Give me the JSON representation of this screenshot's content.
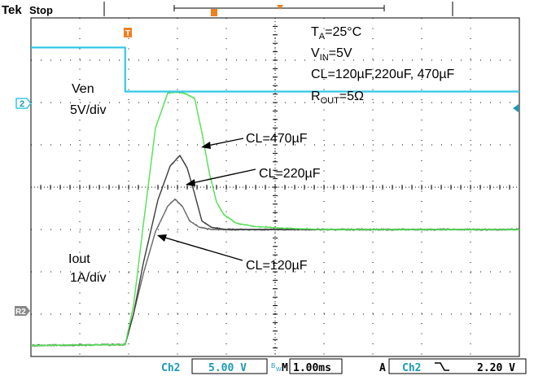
{
  "header": {
    "brand": "Tek",
    "status": "Stop",
    "trigger_marker": "T"
  },
  "footer": {
    "channel": "Ch2",
    "volts_per_div": "5.00 V",
    "bw_icon": "bandwidth-limit-icon",
    "timebase_prefix": "M",
    "time_per_div": "1.00ms",
    "trigger_mode": "A",
    "trigger_source": "Ch2",
    "trigger_slope_icon": "falling-edge-icon",
    "trigger_level": "2.20 V"
  },
  "conditions": [
    {
      "main": "T",
      "sub": "A",
      "rest": "=25°C"
    },
    {
      "main": "V",
      "sub": "IN",
      "rest": "=5V"
    },
    {
      "main": "CL=120µF,220uF, 470µF",
      "sub": "",
      "rest": ""
    },
    {
      "main": "R",
      "sub": "OUT",
      "rest": "=5Ω"
    }
  ],
  "labels": {
    "ven": "Ven",
    "ven_scale": "5V/div",
    "iout": "Iout",
    "iout_scale": "1A/div",
    "ch2_marker": "2",
    "ref_marker": "R2"
  },
  "annotations": [
    {
      "text": "CL=470µF"
    },
    {
      "text": "CL=220µF"
    },
    {
      "text": "CL=120µF"
    }
  ],
  "colors": {
    "ven_trace": "#33c8e8",
    "cl470_trace": "#55e055",
    "cl220_trace": "#404040",
    "cl120_trace": "#6a6a6a",
    "grid": "#000000"
  },
  "chart_data": {
    "type": "line",
    "x_unit": "div",
    "xlim": [
      0,
      10
    ],
    "ylim": [
      0,
      8
    ],
    "grid": true,
    "series": [
      {
        "key": "ven",
        "x": [
          0,
          1.93,
          1.93,
          10
        ],
        "y": [
          7.3,
          7.3,
          6.26,
          6.26
        ]
      },
      {
        "key": "cl470",
        "x": [
          0,
          1.93,
          2.1,
          2.3,
          2.55,
          2.8,
          2.95,
          3.15,
          3.35,
          3.5,
          3.65,
          3.8,
          3.95,
          4.2,
          4.6,
          5.2,
          6,
          10
        ],
        "y": [
          0.26,
          0.28,
          1.2,
          3.1,
          5.4,
          6.22,
          6.25,
          6.22,
          6.1,
          5.3,
          4.35,
          3.65,
          3.35,
          3.15,
          3.07,
          3.03,
          3.0,
          3.0
        ]
      },
      {
        "key": "cl220",
        "x": [
          0,
          1.93,
          2.1,
          2.3,
          2.6,
          2.85,
          3.05,
          3.2,
          3.35,
          3.5,
          3.7,
          4.0,
          4.5,
          10
        ],
        "y": [
          0.26,
          0.28,
          1.0,
          2.2,
          3.7,
          4.5,
          4.75,
          4.45,
          3.85,
          3.2,
          3.05,
          3.0,
          3.0,
          3.0
        ]
      },
      {
        "key": "cl120",
        "x": [
          0,
          1.93,
          2.1,
          2.3,
          2.55,
          2.8,
          2.95,
          3.1,
          3.25,
          3.45,
          3.7,
          4.1,
          10
        ],
        "y": [
          0.26,
          0.28,
          1.0,
          1.95,
          2.95,
          3.55,
          3.72,
          3.55,
          3.2,
          3.05,
          3.0,
          3.0,
          3.0
        ]
      }
    ]
  }
}
